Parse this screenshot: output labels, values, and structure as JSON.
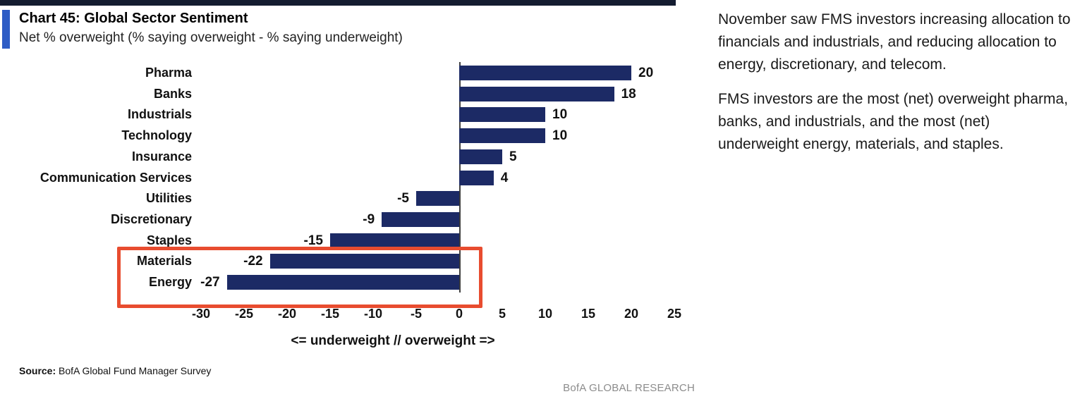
{
  "header": {
    "title": "Chart 45: Global Sector Sentiment",
    "subtitle": "Net % overweight (% saying overweight - % saying underweight)"
  },
  "chart_data": {
    "type": "bar",
    "orientation": "horizontal",
    "title": "Chart 45: Global Sector Sentiment",
    "subtitle": "Net % overweight (% saying overweight - % saying underweight)",
    "categories": [
      "Pharma",
      "Banks",
      "Industrials",
      "Technology",
      "Insurance",
      "Communication Services",
      "Utilities",
      "Discretionary",
      "Staples",
      "Materials",
      "Energy"
    ],
    "values": [
      20,
      18,
      10,
      10,
      5,
      4,
      -5,
      -9,
      -15,
      -22,
      -27
    ],
    "xlabel": "<= underweight // overweight =>",
    "ylabel": "",
    "xlim": [
      -30,
      25
    ],
    "xticks": [
      -30,
      -25,
      -20,
      -15,
      -10,
      -5,
      0,
      5,
      10,
      15,
      20,
      25
    ],
    "grid": false,
    "legend": false,
    "bar_color": "#1c2a65",
    "highlighted_categories": [
      "Materials",
      "Energy"
    ],
    "highlight_color": "#e84c2f"
  },
  "commentary": {
    "paragraphs": [
      "November saw FMS investors increasing allocation to financials and industrials, and reducing allocation to energy, discretionary, and telecom.",
      "FMS investors are the most (net) overweight pharma, banks, and industrials, and the most (net) underweight energy, materials, and staples."
    ]
  },
  "footer": {
    "source_label": "Source:",
    "source_text": " BofA Global Fund Manager Survey",
    "brand": "BofA GLOBAL RESEARCH"
  }
}
